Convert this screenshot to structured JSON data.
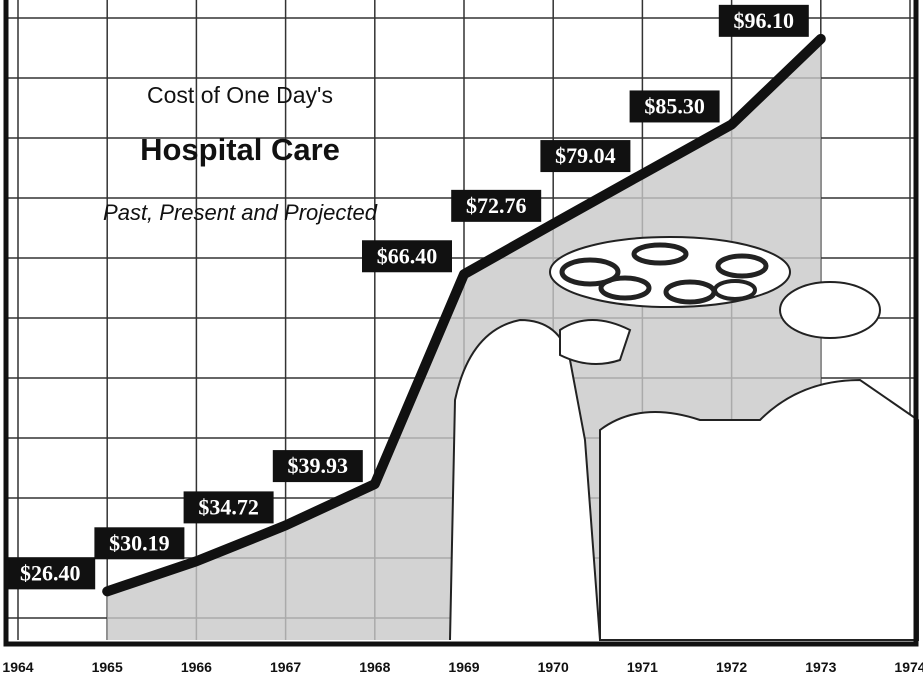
{
  "chart_data": {
    "type": "line",
    "title": "Hospital Care",
    "supertitle": "Cost of One Day's",
    "subtitle": "Past, Present and Projected",
    "x": [
      1965,
      1966,
      1967,
      1968,
      1969,
      1970,
      1971,
      1972,
      1973
    ],
    "values": [
      26.4,
      30.19,
      34.72,
      39.93,
      66.4,
      72.76,
      79.04,
      85.3,
      96.1
    ],
    "value_labels": [
      "$26.40",
      "$30.19",
      "$34.72",
      "$39.93",
      "$66.40",
      "$72.76",
      "$79.04",
      "$85.30",
      "$96.10"
    ],
    "color": "#111111",
    "area_color": "#c8c8c8",
    "xlim": [
      1964,
      1974
    ],
    "xticks": [
      1964,
      1965,
      1966,
      1967,
      1968,
      1969,
      1970,
      1971,
      1972,
      1973,
      1974
    ],
    "ylim": [
      19,
      101
    ],
    "grid": true
  }
}
